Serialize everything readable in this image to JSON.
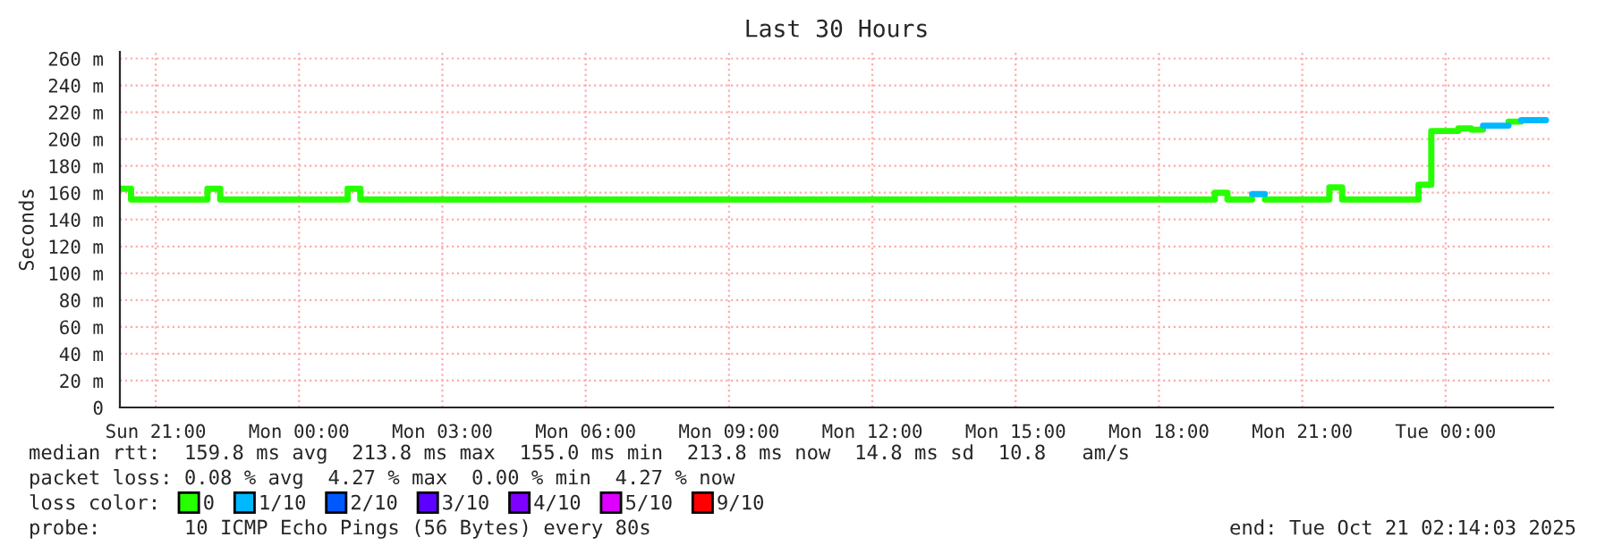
{
  "chart_data": {
    "type": "step",
    "title": "Last 30 Hours",
    "ylabel": "Seconds",
    "xlim": [
      "2025-10-19T20:15",
      "2025-10-21T02:15"
    ],
    "xticks": [
      {
        "value": "2025-10-19T21:00",
        "label": "Sun 21:00"
      },
      {
        "value": "2025-10-20T00:00",
        "label": "Mon 00:00"
      },
      {
        "value": "2025-10-20T03:00",
        "label": "Mon 03:00"
      },
      {
        "value": "2025-10-20T06:00",
        "label": "Mon 06:00"
      },
      {
        "value": "2025-10-20T09:00",
        "label": "Mon 09:00"
      },
      {
        "value": "2025-10-20T12:00",
        "label": "Mon 12:00"
      },
      {
        "value": "2025-10-20T15:00",
        "label": "Mon 15:00"
      },
      {
        "value": "2025-10-20T18:00",
        "label": "Mon 18:00"
      },
      {
        "value": "2025-10-20T21:00",
        "label": "Mon 21:00"
      },
      {
        "value": "2025-10-21T00:00",
        "label": "Tue 00:00"
      }
    ],
    "ylim": [
      0,
      265
    ],
    "yticks": [
      0,
      {
        "value": 20,
        "label": "20 m"
      },
      {
        "value": 40,
        "label": "40 m"
      },
      {
        "value": 60,
        "label": "60 m"
      },
      {
        "value": 80,
        "label": "80 m"
      },
      {
        "value": 100,
        "label": "100 m"
      },
      {
        "value": 120,
        "label": "120 m"
      },
      {
        "value": 140,
        "label": "140 m"
      },
      {
        "value": 160,
        "label": "160 m"
      },
      {
        "value": 180,
        "label": "180 m"
      },
      {
        "value": 200,
        "label": "200 m"
      },
      {
        "value": 220,
        "label": "220 m"
      },
      {
        "value": 240,
        "label": "240 m"
      },
      {
        "value": 260,
        "label": "260 m"
      }
    ],
    "grid": true,
    "legend": "bottom",
    "legend_title": "loss color:",
    "series": [
      {
        "name": "0",
        "color": "#26ff00",
        "x": [
          "2025-10-19T20:15",
          "2025-10-19T20:29",
          "2025-10-19T22:05",
          "2025-10-19T22:21",
          "2025-10-20T01:01",
          "2025-10-20T01:17",
          "2025-10-20T19:10",
          "2025-10-20T19:26",
          "2025-10-20T19:57",
          "2025-10-20T20:13",
          "2025-10-20T21:34",
          "2025-10-20T21:50",
          "2025-10-20T23:26",
          "2025-10-20T23:42",
          "2025-10-21T00:16",
          "2025-10-21T00:32",
          "2025-10-21T00:47",
          "2025-10-21T01:19",
          "2025-10-21T01:35"
        ],
        "values": [
          163,
          155,
          163,
          155,
          163,
          155,
          160,
          155,
          null,
          155,
          164,
          155,
          166,
          206,
          208,
          207,
          null,
          213,
          213
        ]
      },
      {
        "name": "1/10",
        "color": "#00b8ff",
        "x": [
          "2025-10-20T19:57",
          "2025-10-20T20:13",
          "2025-10-21T00:47",
          "2025-10-21T01:19",
          "2025-10-21T01:35",
          "2025-10-21T02:06"
        ],
        "values": [
          159,
          null,
          210,
          null,
          214,
          214
        ]
      },
      {
        "name": "2/10",
        "color": "#0059ff"
      },
      {
        "name": "3/10",
        "color": "#5e00ff"
      },
      {
        "name": "4/10",
        "color": "#7e00ff"
      },
      {
        "name": "5/10",
        "color": "#dd00ff"
      },
      {
        "name": "9/10",
        "color": "#ff0000"
      }
    ],
    "annotations": [
      "median rtt:  159.8 ms avg  213.8 ms max  155.0 ms min  213.8 ms now  14.8 ms sd  10.8   am/s",
      "packet loss: 0.08 % avg  4.27 % max  0.00 % min  4.27 % now",
      "probe:       10 ICMP Echo Pings (56 Bytes) every 80s",
      "end: Tue Oct 21 02:14:03 2025"
    ]
  }
}
